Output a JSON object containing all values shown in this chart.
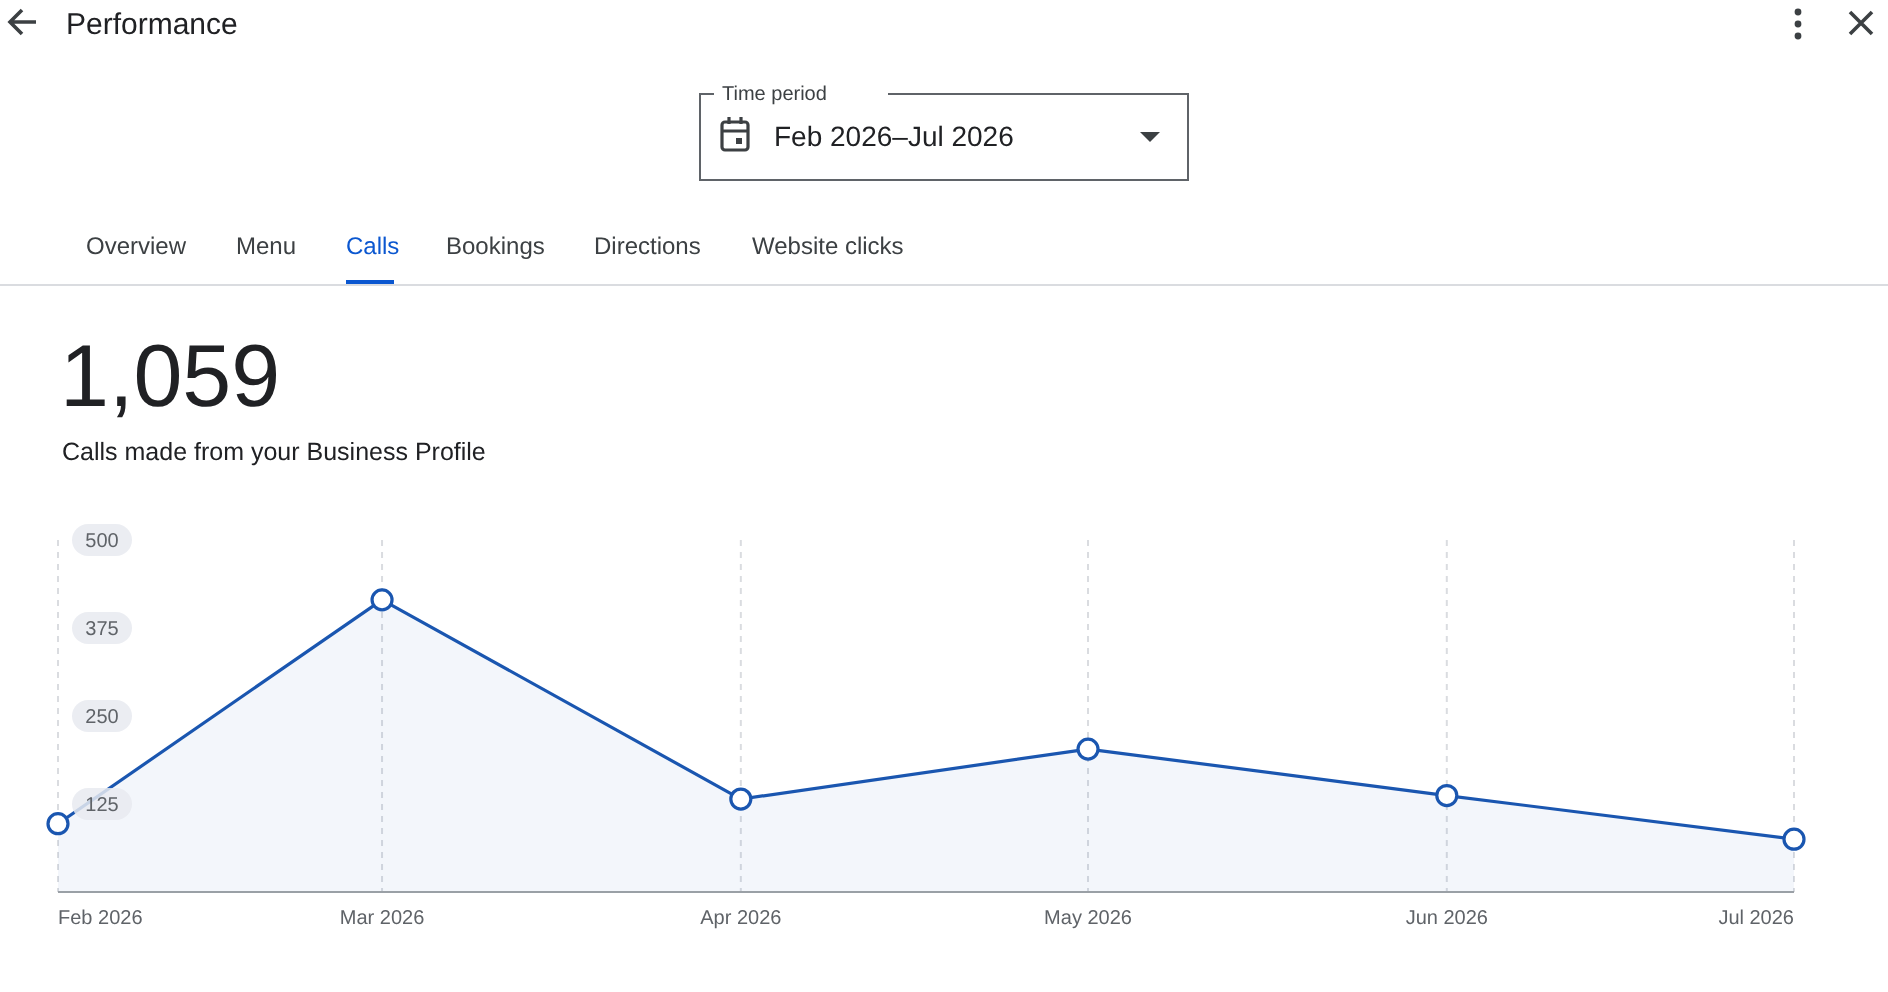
{
  "chart_data": {
    "type": "area",
    "title": "1,059",
    "subtitle": "Calls made from your Business Profile",
    "annotations": [
      "Performance",
      "Time period",
      "Feb 2026–Jul 2026",
      "Overview",
      "Menu",
      "Calls",
      "Bookings",
      "Directions",
      "Website clicks"
    ],
    "x": [
      "2026-02",
      "2026-03",
      "2026-04",
      "2026-05",
      "2026-06",
      "2026-07"
    ],
    "xlim": [
      "2026-02",
      "2026-07"
    ],
    "xticks": [
      {
        "value": "2026-02",
        "label": "Feb 2026"
      },
      {
        "value": "2026-03",
        "label": "Mar 2026"
      },
      {
        "value": "2026-04",
        "label": "Apr 2026"
      },
      {
        "value": "2026-05",
        "label": "May 2026"
      },
      {
        "value": "2026-06",
        "label": "Jun 2026"
      },
      {
        "value": "2026-07",
        "label": "Jul 2026"
      }
    ],
    "ylim": [
      0,
      500
    ],
    "yticks": [
      125,
      250,
      375,
      500
    ],
    "series": [
      {
        "color": "#1a56b0",
        "values": [
          97,
          415,
          132,
          203,
          137,
          75
        ]
      }
    ],
    "grid": "x",
    "marker": "circle",
    "line_style": "solid"
  }
}
